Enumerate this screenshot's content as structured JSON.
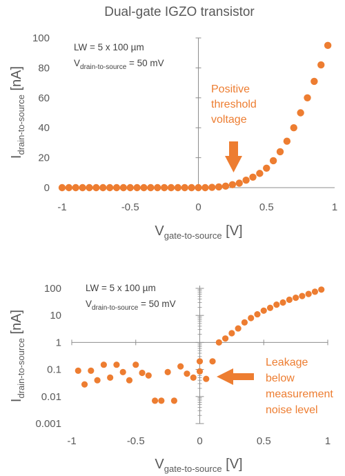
{
  "figure_title": "Dual-gate IGZO transistor",
  "colors": {
    "marker": "#ED7D31",
    "axis": "#8c8c8c",
    "text": "#595959"
  },
  "chart_data": [
    {
      "type": "scatter",
      "title": "Dual-gate IGZO transistor",
      "xlabel": {
        "main": "V",
        "sub": "gate-to-source",
        "unit": " [V]"
      },
      "ylabel": {
        "main": "I",
        "sub": "drain-to-source",
        "unit": " [nA]"
      },
      "xlim": [
        -1,
        1
      ],
      "ylim": [
        0,
        100
      ],
      "x_scale": "linear",
      "y_scale": "linear",
      "x_ticks": [
        "-1",
        "-0.5",
        "0",
        "0.5",
        "1"
      ],
      "y_ticks": [
        "0",
        "20",
        "40",
        "60",
        "80",
        "100"
      ],
      "note": {
        "line1": "LW = 5 x 100 µm",
        "line2_main": "V",
        "line2_sub": "drain-to-source",
        "line2_rest": " = 50 mV"
      },
      "annotation": [
        "Positive",
        "threshold",
        "voltage"
      ],
      "legend": "none",
      "grid": false,
      "x": [
        -1.0,
        -0.95,
        -0.9,
        -0.85,
        -0.8,
        -0.75,
        -0.7,
        -0.65,
        -0.6,
        -0.55,
        -0.5,
        -0.45,
        -0.4,
        -0.35,
        -0.3,
        -0.25,
        -0.2,
        -0.15,
        -0.1,
        -0.05,
        0.0,
        0.05,
        0.1,
        0.15,
        0.2,
        0.25,
        0.3,
        0.35,
        0.4,
        0.45,
        0.5,
        0.55,
        0.6,
        0.65,
        0.7,
        0.75,
        0.8,
        0.85,
        0.9,
        0.95
      ],
      "y": [
        0,
        0,
        0,
        0,
        0,
        0,
        0,
        0,
        0,
        0,
        0,
        0,
        0,
        0,
        0,
        0,
        0,
        0,
        0,
        0,
        0,
        0,
        0.2,
        0.5,
        1,
        2,
        3,
        5,
        7,
        9.5,
        13,
        18,
        24,
        31,
        40,
        50,
        60,
        71,
        82,
        95
      ]
    },
    {
      "type": "scatter",
      "xlabel": {
        "main": "V",
        "sub": "gate-to-source",
        "unit": " [V]"
      },
      "ylabel": {
        "main": "I",
        "sub": "drain-to-source",
        "unit": " [nA]"
      },
      "xlim": [
        -1,
        1
      ],
      "ylim": [
        0.001,
        100
      ],
      "x_scale": "linear",
      "y_scale": "log",
      "x_ticks": [
        "-1",
        "-0.5",
        "0",
        "0.5",
        "1"
      ],
      "y_ticks": [
        "0.001",
        "0.01",
        "0.1",
        "1",
        "10",
        "100"
      ],
      "note": {
        "line1": "LW = 5 x 100 µm",
        "line2_main": "V",
        "line2_sub": "drain-to-source",
        "line2_rest": " = 50 mV"
      },
      "annotation": [
        "Leakage",
        "below",
        "measurement",
        "noise level"
      ],
      "legend": "none",
      "grid": false,
      "x": [
        -0.95,
        -0.9,
        -0.85,
        -0.8,
        -0.75,
        -0.7,
        -0.65,
        -0.6,
        -0.55,
        -0.5,
        -0.45,
        -0.4,
        -0.35,
        -0.3,
        -0.25,
        -0.2,
        -0.15,
        -0.1,
        -0.05,
        0.0,
        0.0,
        0.05,
        0.1,
        0.15,
        0.2,
        0.25,
        0.3,
        0.35,
        0.4,
        0.45,
        0.5,
        0.55,
        0.6,
        0.65,
        0.7,
        0.75,
        0.8,
        0.85,
        0.9,
        0.95
      ],
      "y": [
        0.09,
        0.028,
        0.09,
        0.04,
        0.15,
        0.05,
        0.15,
        0.08,
        0.04,
        0.15,
        0.075,
        0.06,
        0.007,
        0.007,
        0.08,
        0.007,
        0.13,
        0.07,
        0.05,
        0.2,
        0.085,
        0.045,
        0.2,
        1.0,
        1.4,
        2.2,
        3.3,
        5.5,
        8,
        11,
        15,
        19,
        25,
        30,
        38,
        45,
        52,
        62,
        75,
        90
      ]
    }
  ]
}
